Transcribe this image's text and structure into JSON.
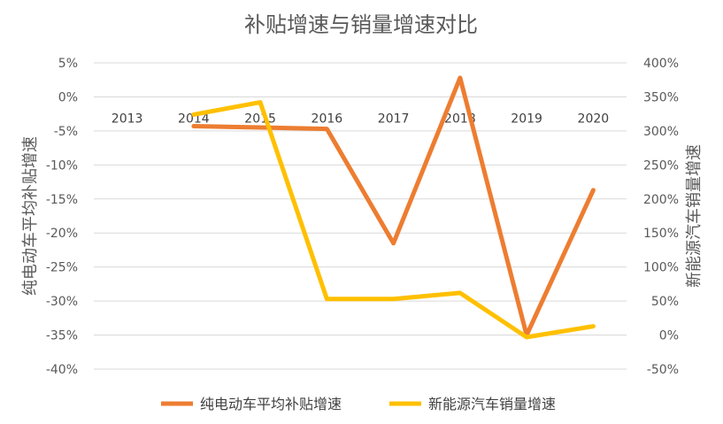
{
  "chart_data": {
    "type": "line",
    "title": "补贴增速与销量增速对比",
    "categories": [
      "2013",
      "2014",
      "2015",
      "2016",
      "2017",
      "2018",
      "2019",
      "2020"
    ],
    "y_left": {
      "label": "纯电动车平均补贴增速",
      "ticks": [
        "5%",
        "0%",
        "-5%",
        "-10%",
        "-15%",
        "-20%",
        "-25%",
        "-30%",
        "-35%",
        "-40%"
      ],
      "range": [
        -40,
        5
      ]
    },
    "y_right": {
      "label": "新能源汽车销量增速",
      "ticks": [
        "400%",
        "350%",
        "300%",
        "250%",
        "200%",
        "150%",
        "100%",
        "50%",
        "0%",
        "-50%"
      ],
      "range": [
        -50,
        400
      ]
    },
    "series": [
      {
        "name": "纯电动车平均补贴增速",
        "axis": "left",
        "color": "#ED7D31",
        "values": [
          null,
          -4.3,
          -4.5,
          -4.7,
          -21.5,
          2.8,
          -35.0,
          -13.7
        ]
      },
      {
        "name": "新能源汽车销量增速",
        "axis": "right",
        "color": "#FFC000",
        "values": [
          null,
          324,
          342,
          53,
          53,
          62,
          -3,
          13
        ]
      }
    ],
    "legend": "bottom",
    "grid": true
  }
}
